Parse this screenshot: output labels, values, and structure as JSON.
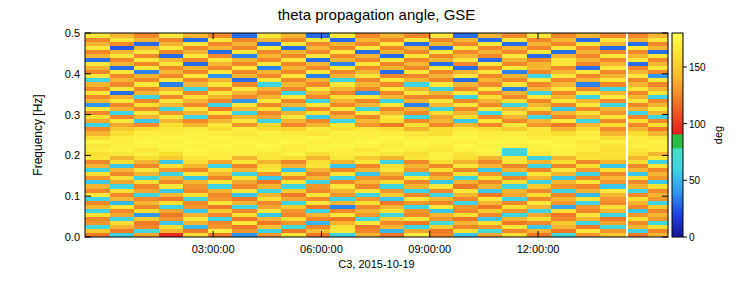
{
  "chart_data": {
    "type": "heatmap",
    "title": "theta propagation angle, GSE",
    "x_label": "C3, 2015-10-19",
    "y_label": "Frequency [Hz]",
    "xlim": [
      -0.55,
      15.6
    ],
    "ylim": [
      0,
      0.5
    ],
    "xticks": [
      {
        "value": 3,
        "label": "03:00:00"
      },
      {
        "value": 6,
        "label": "06:00:00"
      },
      {
        "value": 9,
        "label": "09:00:00"
      },
      {
        "value": 12,
        "label": "12:00:00"
      }
    ],
    "yticks": [
      {
        "value": 0,
        "label": "0.0"
      },
      0.1,
      0.2,
      0.3,
      0.4,
      0.5
    ],
    "x_bins": [
      -0.55,
      0.13,
      0.81,
      1.49,
      2.17,
      2.85,
      3.53,
      4.21,
      4.89,
      5.57,
      6.25,
      6.93,
      7.61,
      8.29,
      8.97,
      9.65,
      10.33,
      11.01,
      11.69,
      12.37,
      13.05,
      13.73,
      14.41,
      14.5,
      15.05,
      15.6
    ],
    "y_bins": [
      0,
      0.01,
      0.02,
      0.03,
      0.04,
      0.05,
      0.06,
      0.07,
      0.08,
      0.09,
      0.1,
      0.11,
      0.12,
      0.13,
      0.14,
      0.15,
      0.16,
      0.17,
      0.18,
      0.19,
      0.2,
      0.21,
      0.22,
      0.23,
      0.24,
      0.25,
      0.26,
      0.27,
      0.28,
      0.29,
      0.3,
      0.31,
      0.32,
      0.33,
      0.34,
      0.35,
      0.36,
      0.37,
      0.38,
      0.39,
      0.4,
      0.41,
      0.42,
      0.43,
      0.44,
      0.45,
      0.46,
      0.47,
      0.48,
      0.49,
      0.5
    ],
    "cells": [
      [
        120,
        60,
        135,
        95,
        160,
        120,
        40,
        130,
        165,
        120,
        60,
        140,
        120,
        170,
        125,
        55,
        135,
        160,
        120,
        65,
        130,
        150,
        null,
        120,
        140
      ],
      [
        150,
        120,
        65,
        140,
        120,
        170,
        130,
        60,
        120,
        145,
        165,
        125,
        50,
        135,
        120,
        160,
        70,
        125,
        140,
        120,
        165,
        130,
        null,
        60,
        125
      ],
      [
        65,
        140,
        125,
        160,
        50,
        130,
        120,
        145,
        70,
        125,
        160,
        120,
        140,
        60,
        150,
        125,
        130,
        165,
        55,
        140,
        120,
        65,
        null,
        140,
        160
      ],
      [
        130,
        160,
        120,
        55,
        140,
        125,
        165,
        120,
        130,
        50,
        140,
        165,
        125,
        120,
        70,
        140,
        160,
        120,
        125,
        150,
        60,
        135,
        null,
        125,
        65
      ],
      [
        125,
        60,
        150,
        130,
        165,
        60,
        120,
        140,
        160,
        125,
        120,
        60,
        150,
        165,
        130,
        120,
        55,
        140,
        160,
        125,
        140,
        120,
        null,
        160,
        130
      ],
      [
        160,
        135,
        40,
        120,
        140,
        125,
        160,
        55,
        125,
        140,
        165,
        130,
        65,
        125,
        140,
        160,
        125,
        60,
        135,
        120,
        165,
        60,
        null,
        130,
        140
      ],
      [
        60,
        125,
        160,
        135,
        55,
        150,
        125,
        165,
        130,
        60,
        125,
        140,
        160,
        130,
        55,
        125,
        150,
        130,
        60,
        160,
        125,
        140,
        null,
        55,
        125
      ],
      [
        140,
        165,
        125,
        60,
        130,
        120,
        60,
        135,
        150,
        120,
        35,
        125,
        140,
        60,
        165,
        130,
        120,
        160,
        140,
        45,
        130,
        160,
        null,
        125,
        150
      ],
      [
        125,
        50,
        140,
        160,
        125,
        165,
        140,
        125,
        60,
        165,
        140,
        160,
        120,
        130,
        125,
        60,
        140,
        125,
        165,
        130,
        60,
        125,
        null,
        140,
        60
      ],
      [
        60,
        140,
        125,
        120,
        65,
        130,
        120,
        160,
        135,
        125,
        60,
        130,
        55,
        165,
        140,
        125,
        165,
        60,
        125,
        140,
        160,
        130,
        null,
        160,
        130
      ],
      [
        165,
        125,
        60,
        140,
        160,
        125,
        55,
        140,
        120,
        165,
        130,
        60,
        150,
        125,
        60,
        140,
        120,
        135,
        160,
        125,
        50,
        140,
        null,
        125,
        140
      ],
      [
        125,
        160,
        135,
        55,
        125,
        140,
        165,
        60,
        150,
        125,
        140,
        165,
        130,
        60,
        125,
        165,
        55,
        140,
        125,
        60,
        140,
        165,
        null,
        60,
        125
      ],
      [
        140,
        60,
        125,
        165,
        130,
        60,
        125,
        140,
        60,
        130,
        165,
        125,
        60,
        140,
        165,
        120,
        140,
        60,
        150,
        130,
        125,
        55,
        null,
        140,
        160
      ],
      [
        55,
        135,
        160,
        125,
        140,
        165,
        135,
        120,
        165,
        60,
        125,
        140,
        160,
        125,
        55,
        140,
        125,
        160,
        60,
        140,
        165,
        130,
        null,
        125,
        55
      ],
      [
        130,
        160,
        60,
        140,
        55,
        125,
        160,
        55,
        125,
        140,
        60,
        130,
        125,
        165,
        140,
        60,
        160,
        125,
        140,
        55,
        125,
        140,
        null,
        160,
        130
      ],
      [
        160,
        125,
        140,
        60,
        165,
        140,
        60,
        130,
        160,
        125,
        165,
        55,
        140,
        60,
        125,
        160,
        130,
        60,
        165,
        140,
        60,
        125,
        null,
        55,
        140
      ],
      [
        60,
        140,
        165,
        130,
        125,
        160,
        140,
        165,
        55,
        140,
        125,
        140,
        165,
        130,
        160,
        125,
        55,
        140,
        125,
        165,
        130,
        160,
        null,
        140,
        125
      ],
      [
        140,
        55,
        125,
        160,
        140,
        60,
        125,
        160,
        140,
        165,
        55,
        125,
        160,
        140,
        125,
        165,
        140,
        125,
        60,
        125,
        160,
        55,
        null,
        125,
        165
      ],
      [
        125,
        160,
        140,
        55,
        160,
        135,
        165,
        140,
        125,
        160,
        140,
        165,
        60,
        125,
        160,
        140,
        125,
        165,
        140,
        160,
        125,
        140,
        null,
        160,
        60
      ],
      [
        165,
        140,
        160,
        150,
        165,
        170,
        140,
        165,
        160,
        140,
        165,
        150,
        140,
        165,
        170,
        160,
        140,
        165,
        60,
        140,
        165,
        160,
        null,
        140,
        165
      ],
      [
        160,
        165,
        170,
        160,
        172,
        168,
        170,
        165,
        172,
        160,
        168,
        170,
        165,
        160,
        172,
        165,
        170,
        60,
        165,
        170,
        160,
        165,
        null,
        160,
        140
      ],
      [
        170,
        172,
        165,
        172,
        175,
        172,
        170,
        172,
        168,
        172,
        170,
        165,
        172,
        168,
        165,
        172,
        175,
        65,
        170,
        172,
        168,
        160,
        null,
        165,
        170
      ],
      [
        165,
        170,
        172,
        175,
        172,
        175,
        172,
        175,
        170,
        172,
        175,
        172,
        168,
        172,
        170,
        175,
        172,
        170,
        172,
        175,
        170,
        165,
        null,
        172,
        168
      ],
      [
        172,
        168,
        175,
        172,
        175,
        172,
        175,
        172,
        175,
        170,
        172,
        175,
        172,
        175,
        172,
        170,
        175,
        172,
        175,
        172,
        165,
        170,
        null,
        168,
        172
      ],
      [
        160,
        170,
        172,
        175,
        172,
        175,
        172,
        170,
        172,
        175,
        170,
        172,
        175,
        170,
        172,
        175,
        170,
        172,
        168,
        170,
        172,
        160,
        null,
        170,
        165
      ],
      [
        140,
        160,
        170,
        168,
        172,
        170,
        165,
        172,
        168,
        165,
        172,
        170,
        168,
        165,
        160,
        172,
        168,
        170,
        165,
        160,
        170,
        140,
        null,
        160,
        140
      ],
      [
        125,
        150,
        160,
        165,
        168,
        160,
        170,
        160,
        155,
        168,
        160,
        165,
        160,
        140,
        160,
        165,
        160,
        150,
        165,
        140,
        160,
        125,
        null,
        140,
        120
      ],
      [
        60,
        135,
        125,
        160,
        140,
        165,
        130,
        155,
        125,
        140,
        165,
        130,
        120,
        160,
        125,
        140,
        125,
        165,
        130,
        120,
        140,
        160,
        null,
        125,
        160
      ],
      [
        135,
        165,
        55,
        140,
        125,
        140,
        165,
        60,
        140,
        125,
        60,
        140,
        160,
        125,
        140,
        55,
        165,
        125,
        140,
        165,
        60,
        125,
        null,
        160,
        125
      ],
      [
        160,
        125,
        140,
        165,
        60,
        125,
        140,
        135,
        165,
        55,
        140,
        125,
        165,
        60,
        135,
        160,
        125,
        140,
        60,
        125,
        140,
        165,
        null,
        125,
        60
      ],
      [
        125,
        60,
        165,
        130,
        140,
        165,
        60,
        125,
        140,
        160,
        125,
        165,
        140,
        125,
        160,
        140,
        60,
        165,
        125,
        140,
        160,
        130,
        null,
        60,
        140
      ],
      [
        165,
        140,
        125,
        60,
        165,
        120,
        140,
        160,
        55,
        125,
        165,
        60,
        125,
        140,
        60,
        125,
        165,
        140,
        160,
        55,
        125,
        140,
        null,
        140,
        165
      ],
      [
        40,
        125,
        160,
        140,
        125,
        60,
        165,
        125,
        140,
        165,
        125,
        140,
        165,
        35,
        140,
        165,
        125,
        60,
        140,
        125,
        165,
        60,
        null,
        125,
        140
      ],
      [
        140,
        165,
        125,
        165,
        140,
        125,
        40,
        165,
        125,
        60,
        140,
        125,
        60,
        140,
        165,
        125,
        140,
        160,
        125,
        165,
        140,
        125,
        null,
        165,
        125
      ],
      [
        125,
        140,
        60,
        125,
        160,
        140,
        125,
        140,
        165,
        125,
        160,
        165,
        140,
        125,
        125,
        60,
        160,
        125,
        165,
        140,
        60,
        165,
        null,
        140,
        60
      ],
      [
        165,
        30,
        140,
        165,
        125,
        165,
        140,
        125,
        60,
        140,
        125,
        40,
        125,
        165,
        140,
        165,
        125,
        140,
        60,
        125,
        165,
        140,
        null,
        125,
        165
      ],
      [
        125,
        165,
        125,
        140,
        60,
        125,
        165,
        140,
        125,
        165,
        140,
        125,
        165,
        140,
        60,
        125,
        165,
        35,
        140,
        165,
        125,
        60,
        null,
        165,
        140
      ],
      [
        140,
        125,
        165,
        35,
        140,
        165,
        125,
        60,
        140,
        125,
        165,
        140,
        125,
        60,
        165,
        140,
        125,
        165,
        125,
        140,
        35,
        125,
        null,
        140,
        125
      ],
      [
        60,
        140,
        125,
        165,
        125,
        140,
        30,
        165,
        125,
        140,
        60,
        125,
        165,
        140,
        125,
        30,
        140,
        125,
        165,
        125,
        140,
        165,
        null,
        125,
        165
      ],
      [
        165,
        125,
        140,
        125,
        165,
        40,
        140,
        125,
        165,
        35,
        140,
        165,
        125,
        125,
        140,
        165,
        125,
        140,
        60,
        165,
        125,
        140,
        null,
        165,
        40
      ],
      [
        125,
        165,
        35,
        140,
        125,
        165,
        125,
        140,
        125,
        165,
        125,
        140,
        30,
        165,
        125,
        140,
        165,
        35,
        125,
        140,
        165,
        125,
        null,
        140,
        125
      ],
      [
        140,
        30,
        165,
        125,
        140,
        125,
        165,
        35,
        140,
        125,
        165,
        125,
        140,
        125,
        165,
        30,
        125,
        165,
        140,
        125,
        30,
        165,
        null,
        125,
        165
      ],
      [
        165,
        140,
        125,
        165,
        30,
        140,
        125,
        165,
        125,
        140,
        35,
        165,
        125,
        140,
        30,
        125,
        165,
        125,
        140,
        165,
        125,
        140,
        null,
        30,
        140
      ],
      [
        30,
        125,
        165,
        140,
        125,
        165,
        140,
        125,
        165,
        30,
        140,
        125,
        165,
        125,
        140,
        165,
        30,
        140,
        125,
        165,
        140,
        125,
        null,
        165,
        125
      ],
      [
        140,
        165,
        125,
        30,
        165,
        125,
        35,
        140,
        125,
        165,
        125,
        140,
        30,
        165,
        125,
        140,
        125,
        165,
        30,
        140,
        125,
        165,
        null,
        140,
        165
      ],
      [
        125,
        140,
        165,
        125,
        140,
        30,
        165,
        125,
        140,
        125,
        165,
        30,
        140,
        125,
        165,
        125,
        140,
        125,
        165,
        30,
        140,
        125,
        null,
        125,
        30
      ],
      [
        165,
        25,
        140,
        165,
        125,
        140,
        125,
        165,
        30,
        140,
        125,
        165,
        125,
        140,
        30,
        165,
        125,
        140,
        125,
        165,
        125,
        30,
        null,
        165,
        140
      ],
      [
        140,
        125,
        30,
        140,
        165,
        125,
        140,
        30,
        165,
        125,
        140,
        125,
        165,
        30,
        140,
        125,
        165,
        30,
        140,
        125,
        165,
        140,
        null,
        30,
        125
      ],
      [
        125,
        165,
        140,
        125,
        30,
        165,
        125,
        140,
        125,
        165,
        30,
        140,
        125,
        165,
        125,
        140,
        30,
        165,
        125,
        140,
        30,
        165,
        null,
        140,
        165
      ],
      [
        165,
        140,
        125,
        165,
        140,
        125,
        30,
        165,
        140,
        30,
        165,
        125,
        140,
        125,
        165,
        30,
        140,
        125,
        165,
        125,
        140,
        125,
        null,
        125,
        140
      ]
    ],
    "colorbar": {
      "label": "deg",
      "range": [
        0,
        180
      ],
      "ticks": [
        0,
        50,
        100,
        150
      ]
    }
  }
}
